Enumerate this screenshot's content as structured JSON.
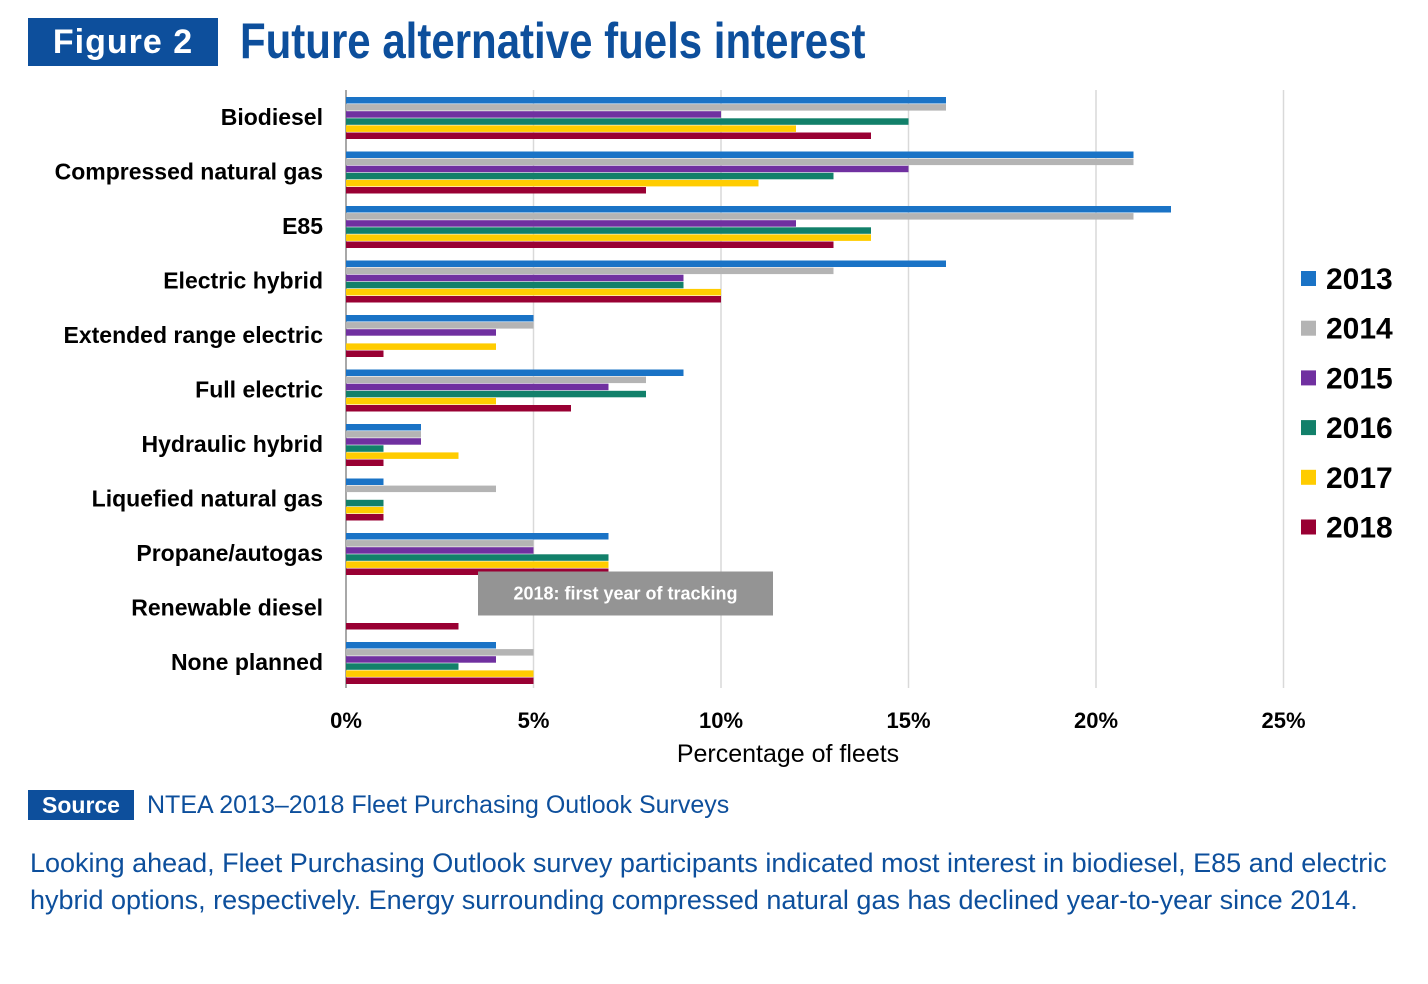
{
  "header": {
    "figure_label": "Figure 2",
    "title": "Future alternative fuels interest"
  },
  "chart_data": {
    "type": "bar",
    "orientation": "horizontal",
    "title": "Future alternative fuels interest",
    "xlabel": "Percentage of fleets",
    "ylabel": "",
    "xlim": [
      0,
      25
    ],
    "x_ticks": [
      "0%",
      "5%",
      "10%",
      "15%",
      "20%",
      "25%"
    ],
    "grid": true,
    "legend_position": "right",
    "categories": [
      "Biodiesel",
      "Compressed natural gas",
      "E85",
      "Electric hybrid",
      "Extended range electric",
      "Full electric",
      "Hydraulic hybrid",
      "Liquefied natural gas",
      "Propane/autogas",
      "Renewable diesel",
      "None planned"
    ],
    "series": [
      {
        "name": "2013",
        "color": "#1a73c6",
        "values": [
          16,
          21,
          22,
          16,
          5,
          9,
          2,
          1,
          7,
          null,
          4
        ]
      },
      {
        "name": "2014",
        "color": "#b4b4b4",
        "values": [
          16,
          21,
          21,
          13,
          5,
          8,
          2,
          4,
          5,
          null,
          5
        ]
      },
      {
        "name": "2015",
        "color": "#7030a0",
        "values": [
          10,
          15,
          12,
          9,
          4,
          7,
          2,
          0,
          5,
          null,
          4
        ]
      },
      {
        "name": "2016",
        "color": "#12806a",
        "values": [
          15,
          13,
          14,
          9,
          0,
          8,
          1,
          1,
          7,
          null,
          3
        ]
      },
      {
        "name": "2017",
        "color": "#ffcc00",
        "values": [
          12,
          11,
          14,
          10,
          4,
          4,
          3,
          1,
          7,
          null,
          5
        ]
      },
      {
        "name": "2018",
        "color": "#990033",
        "values": [
          14,
          8,
          13,
          10,
          1,
          6,
          1,
          1,
          7,
          3,
          5
        ]
      }
    ],
    "annotations": [
      {
        "text": "2018: first year of tracking",
        "category": "Renewable diesel"
      }
    ]
  },
  "source": {
    "label": "Source",
    "text": "NTEA 2013–2018 Fleet Purchasing Outlook Surveys"
  },
  "caption": "Looking ahead, Fleet Purchasing Outlook survey participants indicated most interest in biodiesel, E85 and electric hybrid options, respectively. Energy surrounding compressed natural gas has declined year-to-year since 2014."
}
